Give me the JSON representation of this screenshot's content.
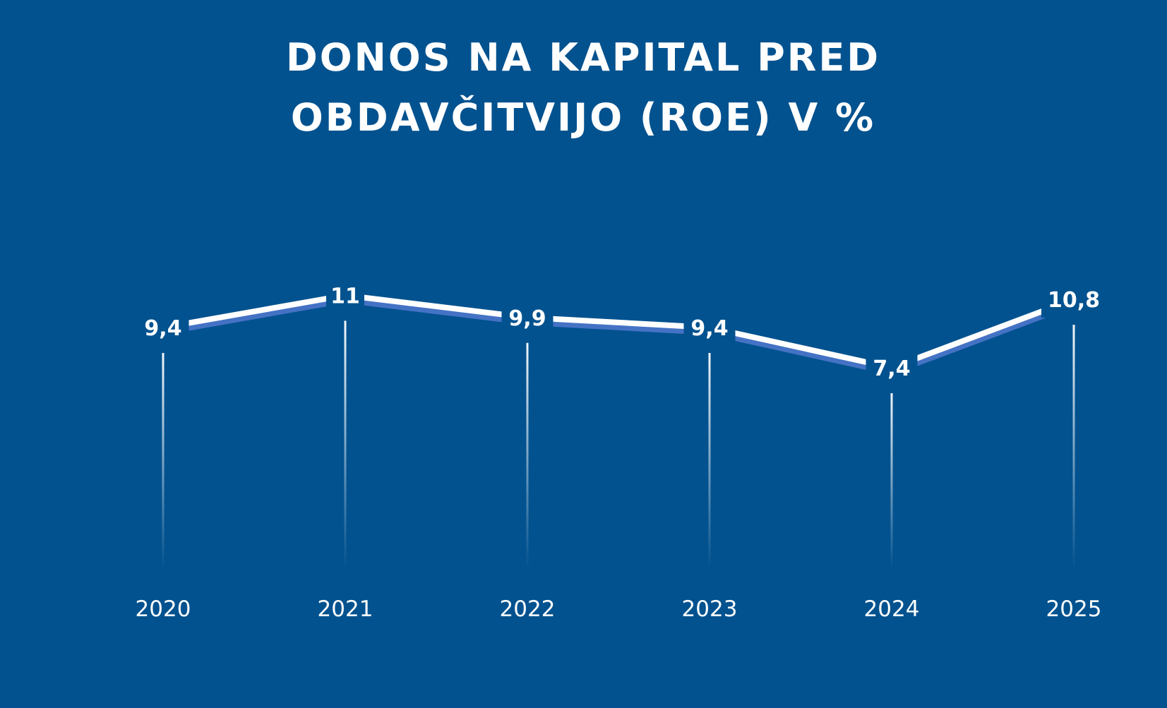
{
  "chart_data": {
    "type": "line",
    "title": [
      "DONOS NA KAPITAL PRED",
      "OBDAVČITVIJO (ROE) V %"
    ],
    "categories": [
      "2020",
      "2021",
      "2022",
      "2023",
      "2024",
      "2025"
    ],
    "values": [
      9.4,
      11,
      9.9,
      9.4,
      7.4,
      10.8
    ],
    "data_labels": [
      "9,4",
      "11",
      "9,9",
      "9,4",
      "7,4",
      "10,8"
    ],
    "xlabel": "",
    "ylabel": "",
    "grid": false,
    "legend": "none",
    "colors": {
      "background": "#02528f",
      "line": "#ffffff",
      "line_shadow": "#4472c4"
    }
  }
}
